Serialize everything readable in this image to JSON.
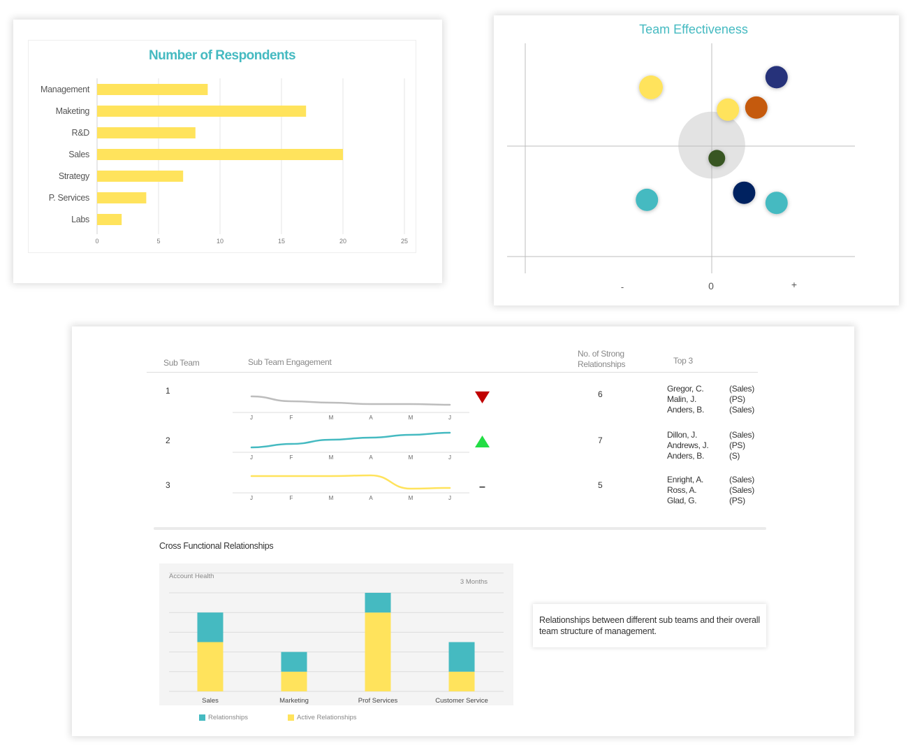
{
  "colors": {
    "title_teal": "#45BAC1",
    "yellow": "#FFE35C",
    "teal": "#45BAC1",
    "gray_line": "#BDBDBD",
    "down_red": "#C00000",
    "up_green": "#22DD44"
  },
  "chart_data": [
    {
      "type": "bar",
      "orientation": "horizontal",
      "title": "Number of Respondents",
      "categories": [
        "Management",
        "Maketing",
        "R&D",
        "Sales",
        "Strategy",
        "P. Services",
        "Labs"
      ],
      "values": [
        9,
        17,
        8,
        20,
        7,
        4,
        2
      ],
      "xlim": [
        0,
        25
      ],
      "xticks": [
        "0",
        "5",
        "10",
        "15",
        "20",
        "25"
      ],
      "grid": true,
      "color": "#FFE35C"
    },
    {
      "type": "scatter",
      "title": "Team Effectiveness",
      "xtick_labels": [
        "-",
        "0",
        "+"
      ],
      "xlim": [
        -10,
        7
      ],
      "ylim": [
        -5.5,
        5
      ],
      "points": [
        {
          "x": -3.0,
          "y": 2.9,
          "size": 17,
          "color": "#FFE35C"
        },
        {
          "x": 3.2,
          "y": 3.4,
          "size": 16,
          "color": "#25337A"
        },
        {
          "x": 0.8,
          "y": 1.8,
          "size": 16,
          "color": "#FFE35C"
        },
        {
          "x": 2.2,
          "y": 1.9,
          "size": 16,
          "color": "#C55A11"
        },
        {
          "x": 0.25,
          "y": -0.6,
          "size": 12,
          "color": "#375623"
        },
        {
          "x": 1.6,
          "y": -2.3,
          "size": 16,
          "color": "#002060"
        },
        {
          "x": -3.2,
          "y": -2.65,
          "size": 16,
          "color": "#45BAC1"
        },
        {
          "x": 3.2,
          "y": -2.8,
          "size": 16,
          "color": "#45BAC1"
        }
      ],
      "highlight_zone": {
        "x": 0,
        "y": 0.05,
        "radius": 1.65,
        "color": "#E3E3E3"
      }
    },
    {
      "type": "bar",
      "stacked": true,
      "title": "Account Health",
      "subtitle": "3 Months",
      "categories": [
        "Sales",
        "Marketing",
        "Prof Services",
        "Customer Service"
      ],
      "series": [
        {
          "name": "Active Relationships",
          "color": "#FFE35C",
          "values": [
            2.5,
            1,
            4,
            1
          ]
        },
        {
          "name": "Relationships",
          "color": "#45BAC1",
          "values": [
            1.5,
            1,
            1,
            1.5
          ]
        }
      ],
      "legend_order": [
        "Relationships",
        "Active Relationships"
      ],
      "ylim": [
        0,
        6
      ],
      "grid": true,
      "legend": "bottom-left"
    }
  ],
  "subteam": {
    "headers": {
      "sub_team": "Sub Team",
      "engagement": "Sub Team Engagement",
      "strong_line1": "No. of Strong",
      "strong_line2": "Relationships",
      "top3": "Top 3"
    },
    "months": [
      "J",
      "F",
      "M",
      "A",
      "M",
      "J"
    ],
    "rows": [
      {
        "id": "1",
        "trend": "down",
        "engagement": [
          23,
          16,
          14,
          12,
          12,
          11
        ],
        "line_color": "#BDBDBD",
        "strong": "6",
        "top3": [
          {
            "name": "Gregor, C.",
            "team": "(Sales)"
          },
          {
            "name": "Malin, J.",
            "team": "(PS)"
          },
          {
            "name": "Anders, B.",
            "team": "(Sales)"
          }
        ]
      },
      {
        "id": "2",
        "trend": "up",
        "engagement": [
          7,
          12,
          18,
          21,
          25,
          28
        ],
        "line_color": "#45BAC1",
        "strong": "7",
        "top3": [
          {
            "name": "Dillon, J.",
            "team": "(Sales)"
          },
          {
            "name": "Andrews, J.",
            "team": "(PS)"
          },
          {
            "name": "Anders, B.",
            "team": "(S)"
          }
        ]
      },
      {
        "id": "3",
        "trend": "flat",
        "engagement": [
          24,
          24,
          24,
          25,
          6,
          7
        ],
        "line_color": "#FFE35C",
        "strong": "5",
        "top3": [
          {
            "name": "Enright, A.",
            "team": "(Sales)"
          },
          {
            "name": "Ross, A.",
            "team": "(Sales)"
          },
          {
            "name": "Glad, G.",
            "team": "(PS)"
          }
        ]
      }
    ],
    "flat_symbol": "–"
  },
  "cross_functional": {
    "title": "Cross Functional Relationships",
    "note": "Relationships between different sub teams and their overall team structure of management."
  }
}
